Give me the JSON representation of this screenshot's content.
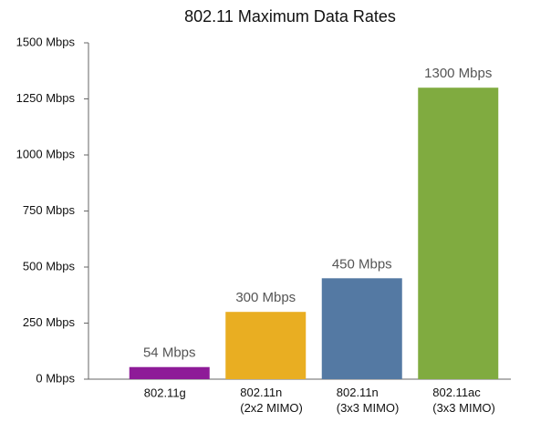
{
  "chart_data": {
    "type": "bar",
    "title": "802.11 Maximum Data Rates",
    "categories": [
      "802.11g",
      "802.11n\n(2x2 MIMO)",
      "802.11n\n(3x3 MIMO)",
      "802.11ac\n(3x3 MIMO)"
    ],
    "values": [
      54,
      300,
      450,
      1300
    ],
    "value_labels": [
      "54 Mbps",
      "300 Mbps",
      "450 Mbps",
      "1300 Mbps"
    ],
    "colors": [
      "#8e1b98",
      "#e9ae22",
      "#5479a3",
      "#80ab40"
    ],
    "ylim": [
      0,
      1500
    ],
    "yticks": [
      {
        "value": 0,
        "label": "0 Mbps"
      },
      {
        "value": 250,
        "label": "250 Mbps"
      },
      {
        "value": 500,
        "label": "500 Mbps"
      },
      {
        "value": 750,
        "label": "750 Mbps"
      },
      {
        "value": 1000,
        "label": "1000 Mbps"
      },
      {
        "value": 1250,
        "label": "1250 Mbps"
      },
      {
        "value": 1500,
        "label": "1500 Mbps"
      }
    ],
    "grid": false
  }
}
